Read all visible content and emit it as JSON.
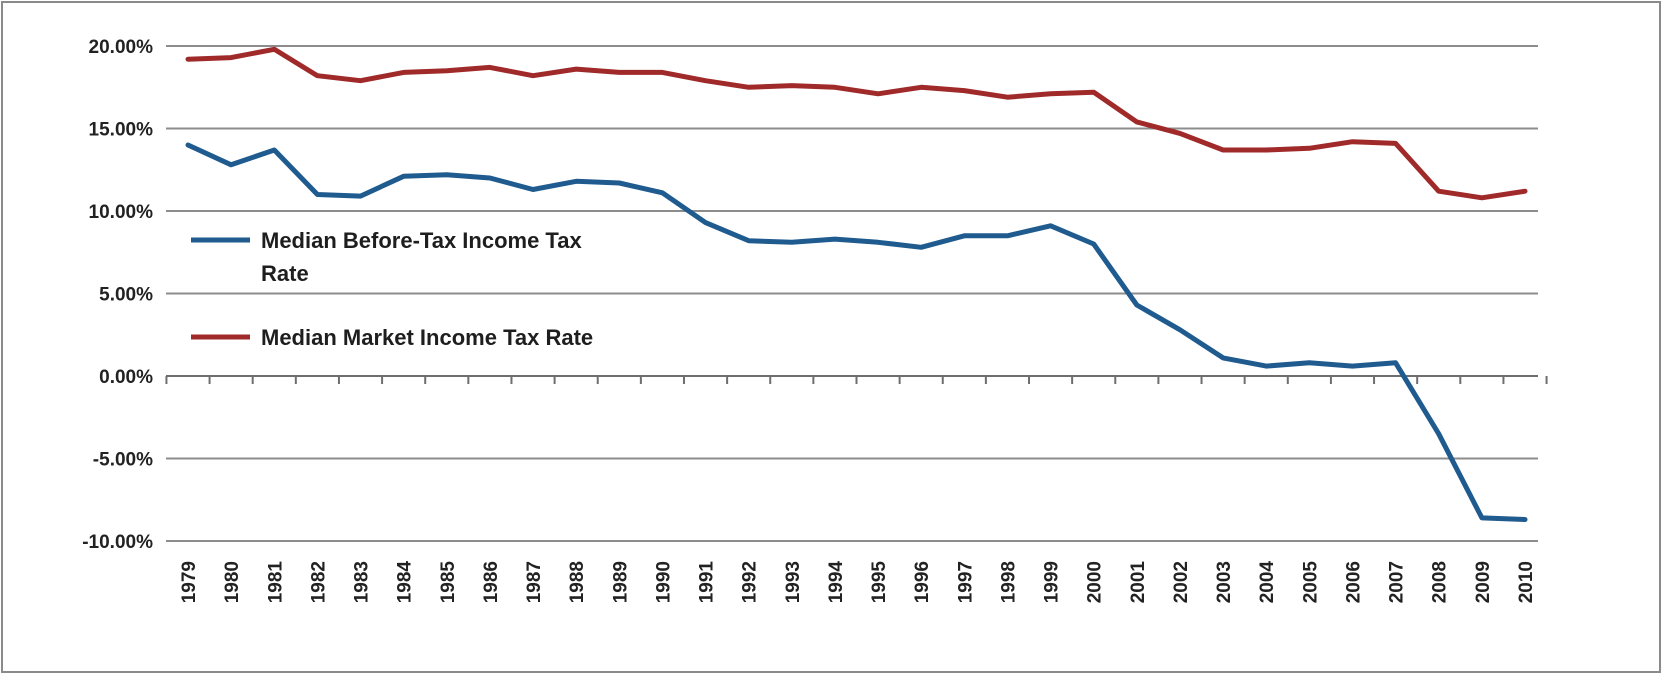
{
  "chart_data": {
    "type": "line",
    "title": "",
    "xlabel": "",
    "ylabel": "",
    "categories": [
      "1979",
      "1980",
      "1981",
      "1982",
      "1983",
      "1984",
      "1985",
      "1986",
      "1987",
      "1988",
      "1989",
      "1990",
      "1991",
      "1992",
      "1993",
      "1994",
      "1995",
      "1996",
      "1997",
      "1998",
      "1999",
      "2000",
      "2001",
      "2002",
      "2003",
      "2004",
      "2005",
      "2006",
      "2007",
      "2008",
      "2009",
      "2010"
    ],
    "ylim": [
      -10,
      20
    ],
    "yticks": [
      20,
      15,
      10,
      5,
      0,
      -5,
      -10
    ],
    "ytick_labels": [
      "20.00%",
      "15.00%",
      "10.00%",
      "5.00%",
      "0.00%",
      "-5.00%",
      "-10.00%"
    ],
    "grid": "horizontal",
    "legend_position": "inside-left",
    "series": [
      {
        "name": "Median Before-Tax Income Tax Rate",
        "name_lines": [
          "Median Before-Tax Income Tax",
          "Rate"
        ],
        "color": "#1f5b8f",
        "values": [
          14.0,
          12.8,
          13.7,
          11.0,
          10.9,
          12.1,
          12.2,
          12.0,
          11.3,
          11.8,
          11.7,
          11.1,
          9.3,
          8.2,
          8.1,
          8.3,
          8.1,
          7.8,
          8.5,
          8.5,
          9.1,
          8.0,
          4.3,
          2.8,
          1.1,
          0.6,
          0.8,
          0.6,
          0.8,
          -3.5,
          -8.6,
          -8.7
        ]
      },
      {
        "name": "Median Market Income Tax Rate",
        "name_lines": [
          "Median Market Income Tax Rate"
        ],
        "color": "#a02a2a",
        "values": [
          19.2,
          19.3,
          19.8,
          18.2,
          17.9,
          18.4,
          18.5,
          18.7,
          18.2,
          18.6,
          18.4,
          18.4,
          17.9,
          17.5,
          17.6,
          17.5,
          17.1,
          17.5,
          17.3,
          16.9,
          17.1,
          17.2,
          15.4,
          14.7,
          13.7,
          13.7,
          13.8,
          14.2,
          14.1,
          11.2,
          10.8,
          11.2
        ]
      }
    ]
  }
}
